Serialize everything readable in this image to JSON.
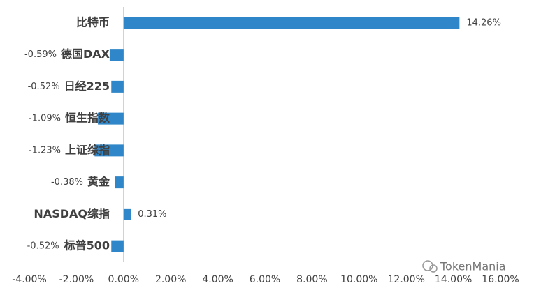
{
  "chart_data": {
    "type": "hbar",
    "categories": [
      "比特币",
      "德国DAX",
      "日经225",
      "恒生指数",
      "上证综指",
      "黄金",
      "NASDAQ综指",
      "标普500"
    ],
    "values": [
      14.26,
      -0.59,
      -0.52,
      -1.09,
      -1.23,
      -0.38,
      0.31,
      -0.52
    ],
    "value_labels": [
      "14.26%",
      "-0.59%",
      "-0.52%",
      "-1.09%",
      "-1.23%",
      "-0.38%",
      "0.31%",
      "-0.52%"
    ],
    "color": "#2f86c8",
    "xlim": [
      -4,
      16
    ],
    "xticks": [
      {
        "value": -4,
        "label": "-4.00%"
      },
      {
        "value": -2,
        "label": "-2.00%"
      },
      {
        "value": 0,
        "label": "0.00%"
      },
      {
        "value": 2,
        "label": "2.00%"
      },
      {
        "value": 4,
        "label": "4.00%"
      },
      {
        "value": 6,
        "label": "6.00%"
      },
      {
        "value": 8,
        "label": "8.00%"
      },
      {
        "value": 10,
        "label": "10.00%"
      },
      {
        "value": 12,
        "label": "12.00%"
      },
      {
        "value": 14,
        "label": "14.00%"
      },
      {
        "value": 16,
        "label": "16.00%"
      }
    ],
    "grid": false
  },
  "watermark": "TokenMania"
}
